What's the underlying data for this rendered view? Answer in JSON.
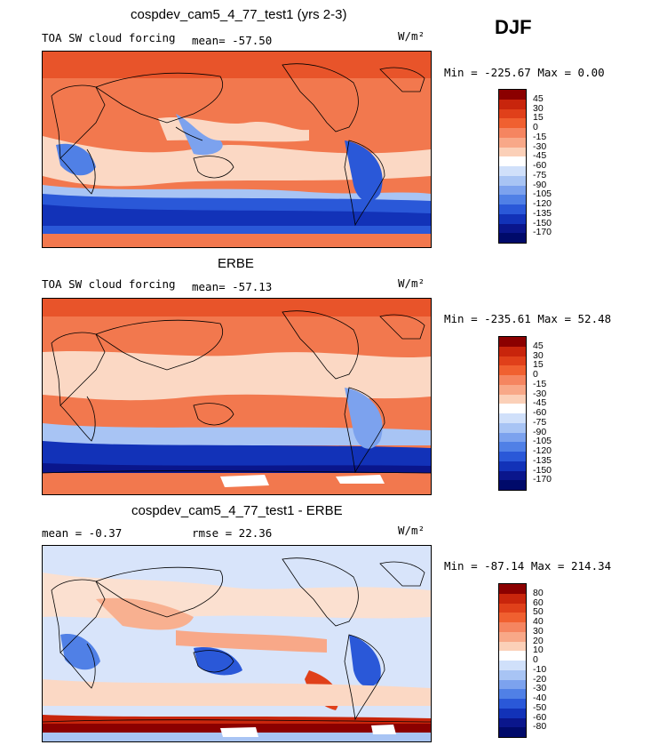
{
  "season": "DJF",
  "panels": [
    {
      "title": "cospdev_cam5_4_77_test1 (yrs 2-3)",
      "variable": "TOA SW cloud forcing",
      "stat1": "mean= -57.50",
      "stat2": "",
      "units": "W/m²",
      "minmax": "Min = -225.67 Max =   0.00",
      "colorbar_labels": [
        "45",
        "30",
        "15",
        "0",
        "-15",
        "-30",
        "-45",
        "-60",
        "-75",
        "-90",
        "-105",
        "-120",
        "-135",
        "-150",
        "-170"
      ],
      "colorbar_colors": [
        "#8b0000",
        "#c8250c",
        "#e0401a",
        "#f06030",
        "#f58560",
        "#f8a888",
        "#fbd0b8",
        "#ffffff",
        "#d0e0fa",
        "#a8c4f4",
        "#7ca2ee",
        "#5080e6",
        "#2a58d8",
        "#1232b8",
        "#0a168c",
        "#000a6a"
      ]
    },
    {
      "title": "ERBE",
      "variable": "TOA SW cloud forcing",
      "stat1": "mean= -57.13",
      "stat2": "",
      "units": "W/m²",
      "minmax": "Min = -235.61 Max =  52.48",
      "colorbar_labels": [
        "45",
        "30",
        "15",
        "0",
        "-15",
        "-30",
        "-45",
        "-60",
        "-75",
        "-90",
        "-105",
        "-120",
        "-135",
        "-150",
        "-170"
      ],
      "colorbar_colors": [
        "#8b0000",
        "#c8250c",
        "#e0401a",
        "#f06030",
        "#f58560",
        "#f8a888",
        "#fbd0b8",
        "#ffffff",
        "#d0e0fa",
        "#a8c4f4",
        "#7ca2ee",
        "#5080e6",
        "#2a58d8",
        "#1232b8",
        "#0a168c",
        "#000a6a"
      ]
    },
    {
      "title": "cospdev_cam5_4_77_test1 - ERBE",
      "variable": "",
      "stat1": "mean =  -0.37",
      "stat2": "rmse =  22.36",
      "units": "W/m²",
      "minmax": "Min = -87.14 Max = 214.34",
      "colorbar_labels": [
        "80",
        "60",
        "50",
        "40",
        "30",
        "20",
        "10",
        "0",
        "-10",
        "-20",
        "-30",
        "-40",
        "-50",
        "-60",
        "-80"
      ],
      "colorbar_colors": [
        "#8b0000",
        "#c8250c",
        "#e0401a",
        "#f06030",
        "#f58560",
        "#f8a888",
        "#fbd0b8",
        "#ffffff",
        "#d0e0fa",
        "#a8c4f4",
        "#7ca2ee",
        "#5080e6",
        "#2a58d8",
        "#1232b8",
        "#0a168c",
        "#000a6a"
      ]
    }
  ]
}
